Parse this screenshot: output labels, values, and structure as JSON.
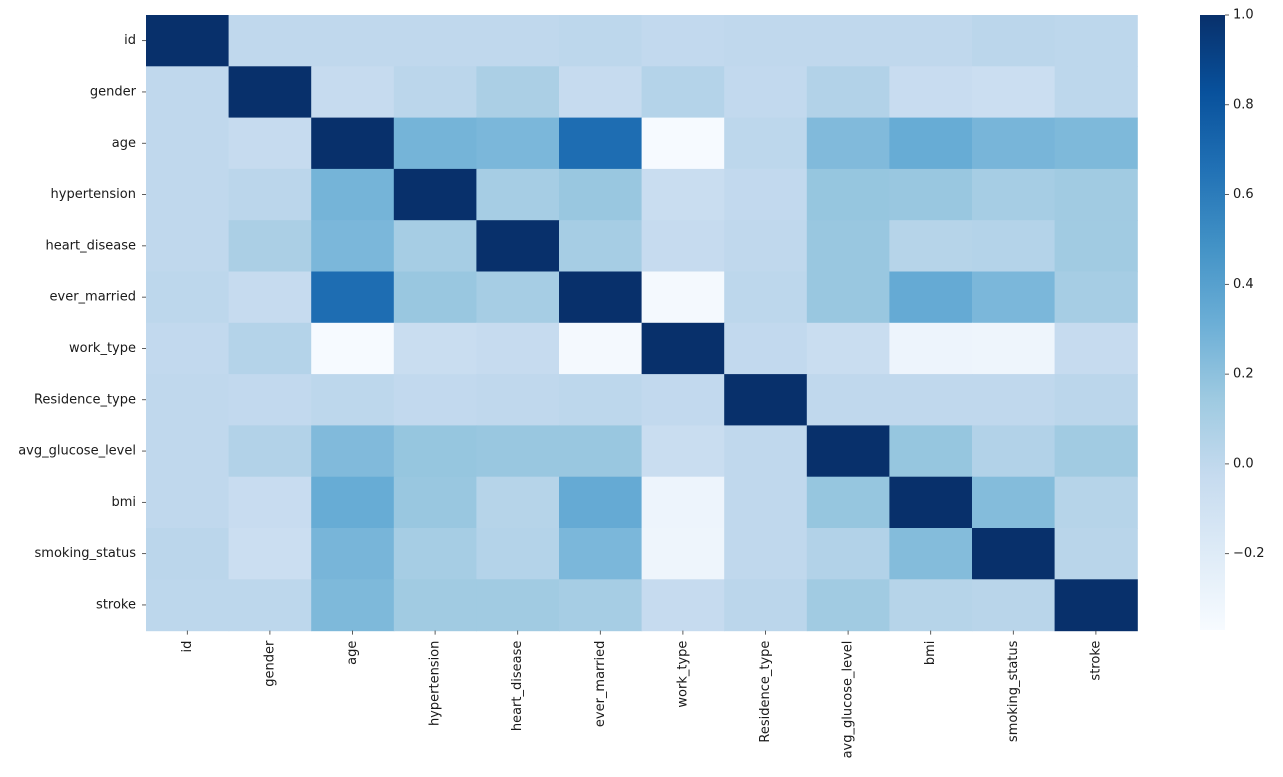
{
  "chart_data": {
    "type": "heatmap",
    "title": "",
    "xlabel": "",
    "ylabel": "",
    "colormap": "Blues",
    "vmin": -0.37,
    "vmax": 1.0,
    "colorbar_ticks": [
      1.0,
      0.8,
      0.6,
      0.4,
      0.2,
      0.0,
      -0.2
    ],
    "colorbar_tick_labels": [
      "1.0",
      "0.8",
      "0.6",
      "0.4",
      "0.2",
      "0.0",
      "−0.2"
    ],
    "x_labels": [
      "id",
      "gender",
      "age",
      "hypertension",
      "heart_disease",
      "ever_married",
      "work_type",
      "Residence_type",
      "avg_glucose_level",
      "bmi",
      "smoking_status",
      "stroke"
    ],
    "y_labels": [
      "id",
      "gender",
      "age",
      "hypertension",
      "heart_disease",
      "ever_married",
      "work_type",
      "Residence_type",
      "avg_glucose_level",
      "bmi",
      "smoking_status",
      "stroke"
    ],
    "matrix": [
      [
        1.0,
        0.0,
        0.0,
        0.0,
        0.0,
        0.01,
        -0.01,
        -0.0,
        -0.0,
        0.0,
        0.02,
        0.01
      ],
      [
        0.0,
        1.0,
        -0.03,
        0.02,
        0.09,
        -0.03,
        0.05,
        -0.01,
        0.06,
        -0.04,
        -0.06,
        0.01
      ],
      [
        0.0,
        -0.03,
        1.0,
        0.28,
        0.26,
        0.68,
        -0.36,
        0.01,
        0.24,
        0.33,
        0.27,
        0.25
      ],
      [
        0.0,
        0.02,
        0.28,
        1.0,
        0.11,
        0.16,
        -0.05,
        -0.01,
        0.17,
        0.16,
        0.11,
        0.13
      ],
      [
        0.0,
        0.09,
        0.26,
        0.11,
        1.0,
        0.11,
        -0.03,
        0.0,
        0.16,
        0.04,
        0.05,
        0.13
      ],
      [
        0.01,
        -0.03,
        0.68,
        0.16,
        0.11,
        1.0,
        -0.35,
        0.01,
        0.16,
        0.34,
        0.26,
        0.11
      ],
      [
        -0.01,
        0.05,
        -0.36,
        -0.05,
        -0.03,
        -0.35,
        1.0,
        -0.01,
        -0.05,
        -0.3,
        -0.31,
        -0.03
      ],
      [
        -0.0,
        -0.01,
        0.01,
        -0.01,
        0.0,
        0.01,
        -0.01,
        1.0,
        -0.0,
        -0.0,
        0.0,
        0.02
      ],
      [
        -0.0,
        0.06,
        0.24,
        0.17,
        0.16,
        0.16,
        -0.05,
        -0.0,
        1.0,
        0.17,
        0.06,
        0.13
      ],
      [
        0.0,
        -0.04,
        0.33,
        0.16,
        0.04,
        0.34,
        -0.3,
        -0.0,
        0.17,
        1.0,
        0.23,
        0.04
      ],
      [
        0.02,
        -0.06,
        0.27,
        0.11,
        0.05,
        0.26,
        -0.31,
        0.0,
        0.06,
        0.23,
        1.0,
        0.03
      ],
      [
        0.01,
        0.01,
        0.25,
        0.13,
        0.13,
        0.11,
        -0.03,
        0.02,
        0.13,
        0.04,
        0.03,
        1.0
      ]
    ]
  }
}
